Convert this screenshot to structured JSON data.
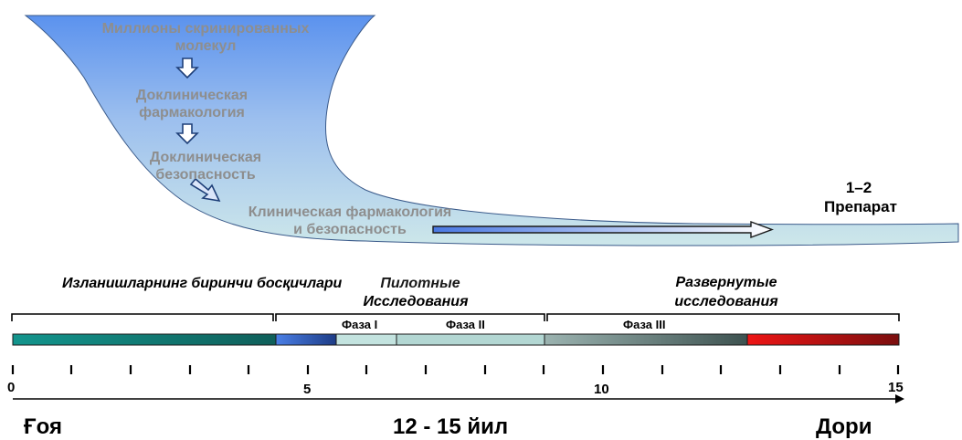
{
  "funnel": {
    "stage1_line1": "Миллионы скринированных",
    "stage1_line2": "молекул",
    "stage2_line1": "Доклиническая",
    "stage2_line2": "фармакология",
    "stage3_line1": "Доклиническая",
    "stage3_line2": "безопасность",
    "stage4_line1": "Клиническая фармакология",
    "stage4_line2": "и безопасность"
  },
  "result": {
    "count": "1–2",
    "label": "Препарат"
  },
  "timeline": {
    "header_first": "Изланишларнинг  биринчи босқичлари",
    "header_pilot_line1": "Пилотные",
    "header_pilot_line2": "Исследования",
    "header_expanded_line1": "Развернутые",
    "header_expanded_line2": "исследования",
    "phase1": "Фаза I",
    "phase2": "Фаза II",
    "phase3": "Фаза III",
    "tick0": "0",
    "tick5": "5",
    "tick10": "10",
    "tick15": "15"
  },
  "bottom": {
    "idea": "Ғоя",
    "duration": "12 - 15 йил",
    "drug": "Дори"
  },
  "colors": {
    "funnel_top": "#5e95ef",
    "funnel_bottom": "#c8e4ea",
    "bar_teal": "#138a84",
    "bar_blue": "#3f70d8",
    "bar_light": "#bfe0dc",
    "bar_grey": "#71928f",
    "bar_red": "#dd1010"
  }
}
